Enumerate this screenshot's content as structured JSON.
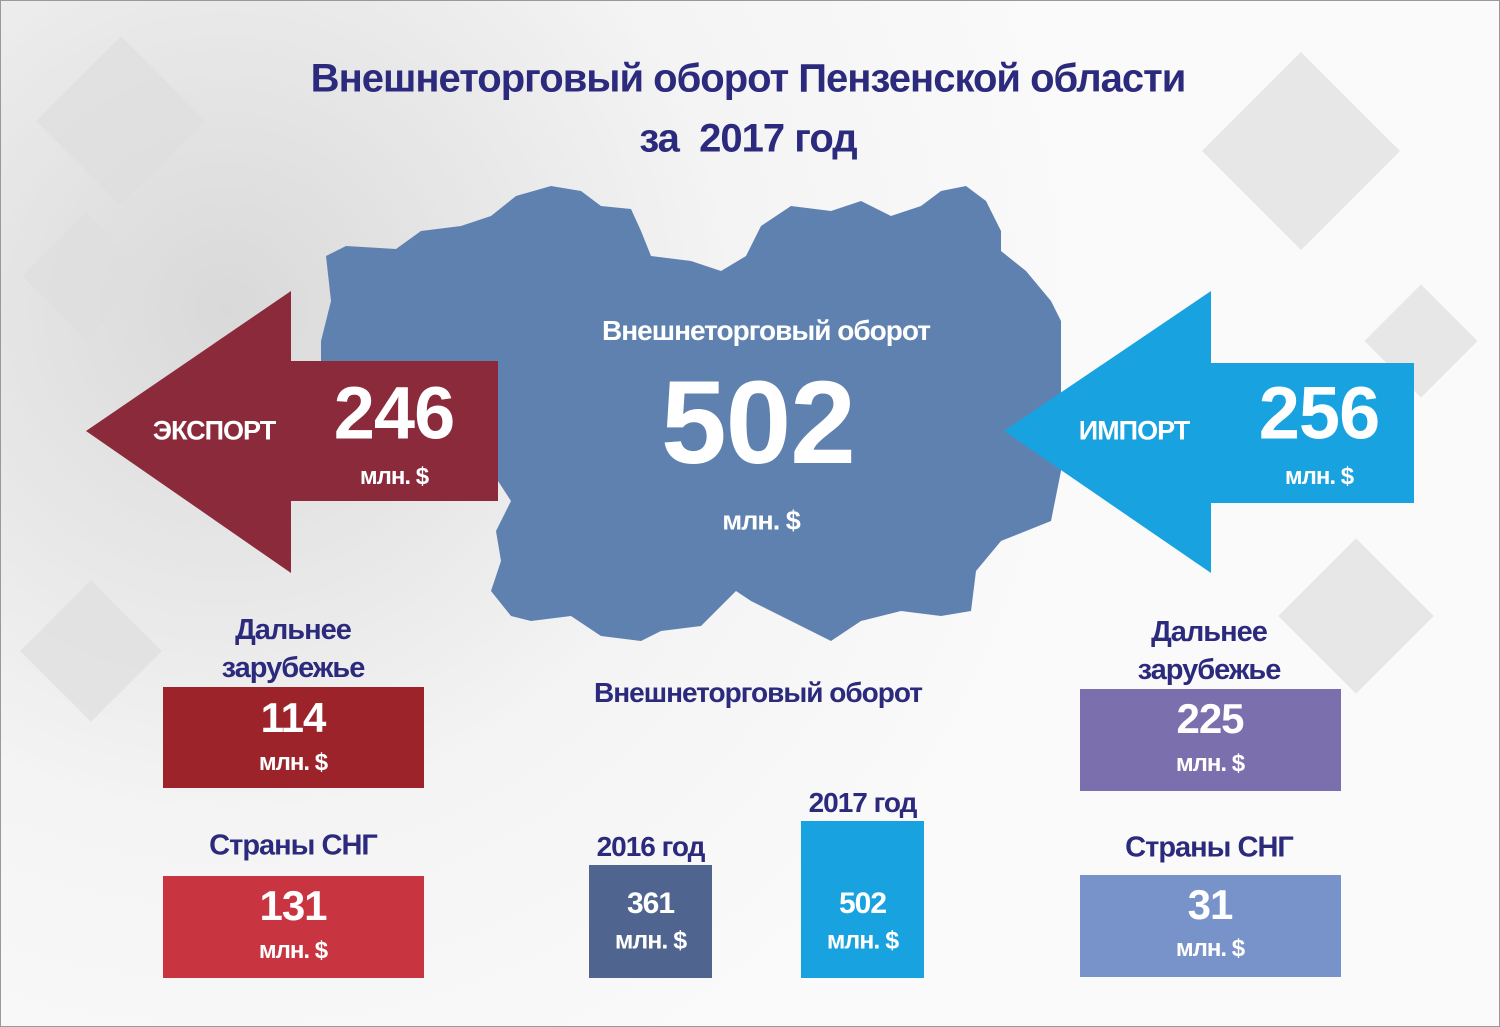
{
  "title": {
    "line1": "Внешнеторговый оборот Пензенской области",
    "line2": "за  2017 год"
  },
  "total": {
    "label": "Внешнеторговый оборот",
    "value": 502,
    "unit": "млн. $"
  },
  "export": {
    "label": "ЭКСПОРТ",
    "value": 246,
    "unit": "млн. $",
    "far_abroad": {
      "label": "Дальнее зарубежье",
      "value": 114,
      "unit": "млн. $"
    },
    "cis": {
      "label": "Страны СНГ",
      "value": 131,
      "unit": "млн. $"
    }
  },
  "import": {
    "label": "ИМПОРТ",
    "value": 256,
    "unit": "млн. $",
    "far_abroad": {
      "label": "Дальнее зарубежье",
      "value": 225,
      "unit": "млн. $"
    },
    "cis": {
      "label": "Страны СНГ",
      "value": 31,
      "unit": "млн. $"
    }
  },
  "comparison": {
    "title": "Внешнеторговый оборот",
    "bars": [
      {
        "label": "2016 год",
        "value": 361,
        "unit": "млн. $"
      },
      {
        "label": "2017 год",
        "value": 502,
        "unit": "млн. $"
      }
    ]
  }
}
